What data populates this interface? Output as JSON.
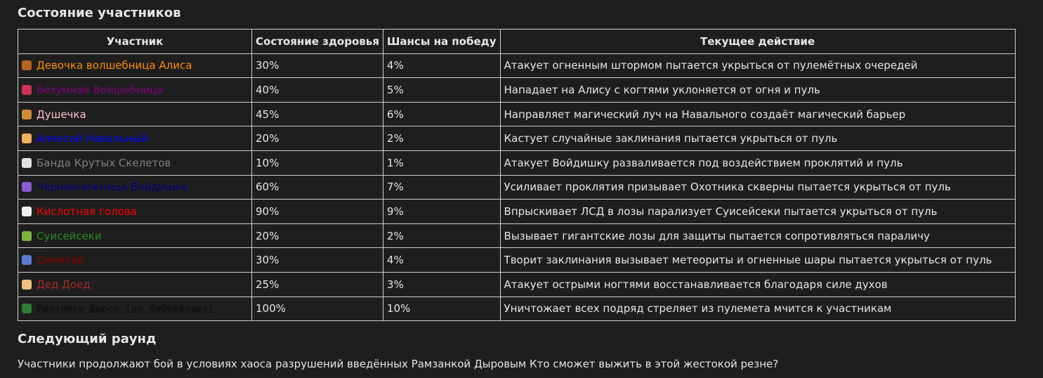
{
  "header": {
    "title": "Состояние участников"
  },
  "table": {
    "columns": [
      "Участник",
      "Состояние здоровья",
      "Шансы на победу",
      "Текущее действие"
    ],
    "rows": [
      {
        "name": "Девочка волшебница Алиса",
        "color": "#ff8c00",
        "health": "30%",
        "chance": "4%",
        "action": "Атакует огненным штормом пытается укрыться от пулемётных очередей"
      },
      {
        "name": "Безумная Волшебница",
        "color": "#800080",
        "health": "40%",
        "chance": "5%",
        "action": "Нападает на Алису с когтями уклоняется от огня и пуль"
      },
      {
        "name": "Душечка",
        "color": "#ffc0cb",
        "health": "45%",
        "chance": "6%",
        "action": "Направляет магический луч на Навального создаёт магический барьер"
      },
      {
        "name": "Алексей Навальный",
        "color": "#0000ff",
        "health": "20%",
        "chance": "2%",
        "action": "Кастует случайные заклинания пытается укрыться от пуль"
      },
      {
        "name": "Банда Крутых Скелетов",
        "color": "#808080",
        "health": "10%",
        "chance": "1%",
        "action": "Атакует Войдишку разваливается под воздействием проклятий и пуль"
      },
      {
        "name": "Чернокнижница Войдишка",
        "color": "#000080",
        "health": "60%",
        "chance": "7%",
        "action": "Усиливает проклятия призывает Охотника скверны пытается укрыться от пуль"
      },
      {
        "name": "Кислотная голова",
        "color": "#ff0000",
        "health": "90%",
        "chance": "9%",
        "action": "Впрыскивает ЛСД в лозы парализует Суисейсеки пытается укрыться от пуль"
      },
      {
        "name": "Суисейсеки",
        "color": "#228b22",
        "health": "20%",
        "chance": "2%",
        "action": "Вызывает гигантские лозы для защиты пытается сопротивляться параличу"
      },
      {
        "name": "Синитар",
        "color": "#8b0000",
        "health": "30%",
        "chance": "4%",
        "action": "Творит заклинания вызывает метеориты и огненные шары пытается укрыться от пуль"
      },
      {
        "name": "Дед Доед",
        "color": "#a52a2a",
        "health": "25%",
        "chance": "3%",
        "action": "Атакует острыми ногтями восстанавливается благодаря силе духов"
      },
      {
        "name": "Рамзанка Дыров (на Киберфраке)",
        "color": "#111111",
        "health": "100%",
        "chance": "10%",
        "action": "Уничтожает всех подряд стреляет из пулемета мчится к участникам"
      }
    ]
  },
  "next": {
    "title": "Следующий раунд",
    "text": "Участники продолжают бой в условиях хаоса разрушений введённых Рамзанкой Дыровым Кто сможет выжить в этой жестокой резне?"
  }
}
